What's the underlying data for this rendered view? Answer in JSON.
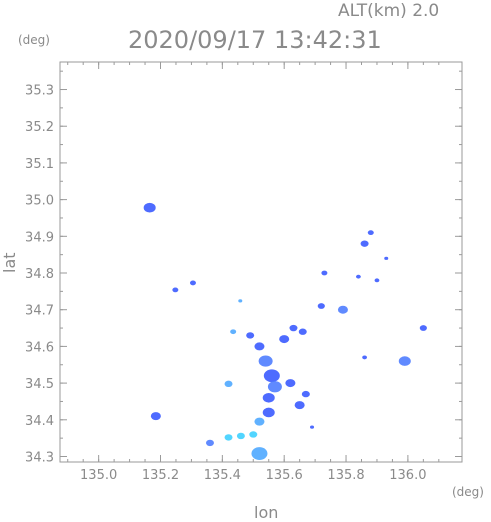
{
  "header": {
    "altitude_label": "ALT(km)  2.0",
    "timestamp": "2020/09/17  13:42:31",
    "y_unit": "(deg)",
    "x_unit": "(deg)"
  },
  "colors": {
    "axis": "#9a9a9a",
    "text": "#8a8a8a",
    "echo_blue": "#3b5bff",
    "echo_mid": "#4f7dff",
    "echo_light": "#4fa8ff",
    "echo_cyan": "#3fd0ff"
  },
  "chart_data": {
    "type": "scatter",
    "title": "2020/09/17  13:42:31",
    "xlabel": "lon",
    "ylabel": "lat",
    "xlim": [
      134.875,
      136.175
    ],
    "ylim": [
      34.285,
      35.375
    ],
    "xticks": [
      135.0,
      135.2,
      135.4,
      135.6,
      135.8,
      136.0
    ],
    "xtick_labels": [
      "135.0",
      "135.2",
      "135.4",
      "135.6",
      "135.8",
      "136.0"
    ],
    "yticks": [
      34.3,
      34.4,
      34.5,
      34.6,
      34.7,
      34.8,
      34.9,
      35.0,
      35.1,
      35.2,
      35.3
    ],
    "ytick_labels": [
      "34.3",
      "34.4",
      "34.5",
      "34.6",
      "34.7",
      "34.8",
      "34.9",
      "35.0",
      "35.1",
      "35.2",
      "35.3"
    ],
    "grid": false,
    "echo_cells": [
      {
        "x": 135.165,
        "y": 34.978,
        "size": 3,
        "color": "blue"
      },
      {
        "x": 135.185,
        "y": 34.41,
        "size": 2.5,
        "color": "blue"
      },
      {
        "x": 135.248,
        "y": 34.754,
        "size": 1.5,
        "color": "blue"
      },
      {
        "x": 135.305,
        "y": 34.773,
        "size": 1.5,
        "color": "blue"
      },
      {
        "x": 135.36,
        "y": 34.337,
        "size": 2,
        "color": "mid"
      },
      {
        "x": 135.42,
        "y": 34.352,
        "size": 2,
        "color": "cyan"
      },
      {
        "x": 135.46,
        "y": 34.356,
        "size": 2,
        "color": "cyan"
      },
      {
        "x": 135.5,
        "y": 34.36,
        "size": 2,
        "color": "cyan"
      },
      {
        "x": 135.52,
        "y": 34.308,
        "size": 4,
        "color": "light"
      },
      {
        "x": 135.42,
        "y": 34.498,
        "size": 2,
        "color": "light"
      },
      {
        "x": 135.435,
        "y": 34.64,
        "size": 1.5,
        "color": "light"
      },
      {
        "x": 135.458,
        "y": 34.724,
        "size": 1,
        "color": "light"
      },
      {
        "x": 135.49,
        "y": 34.63,
        "size": 2,
        "color": "blue"
      },
      {
        "x": 135.52,
        "y": 34.6,
        "size": 2.5,
        "color": "blue"
      },
      {
        "x": 135.54,
        "y": 34.56,
        "size": 3.5,
        "color": "mid"
      },
      {
        "x": 135.56,
        "y": 34.52,
        "size": 4,
        "color": "blue"
      },
      {
        "x": 135.57,
        "y": 34.49,
        "size": 3.5,
        "color": "mid"
      },
      {
        "x": 135.55,
        "y": 34.46,
        "size": 3,
        "color": "blue"
      },
      {
        "x": 135.6,
        "y": 34.62,
        "size": 2.5,
        "color": "blue"
      },
      {
        "x": 135.63,
        "y": 34.65,
        "size": 2,
        "color": "blue"
      },
      {
        "x": 135.66,
        "y": 34.64,
        "size": 2,
        "color": "blue"
      },
      {
        "x": 135.62,
        "y": 34.5,
        "size": 2.5,
        "color": "blue"
      },
      {
        "x": 135.55,
        "y": 34.42,
        "size": 3,
        "color": "blue"
      },
      {
        "x": 135.65,
        "y": 34.44,
        "size": 2.5,
        "color": "blue"
      },
      {
        "x": 135.67,
        "y": 34.47,
        "size": 2,
        "color": "blue"
      },
      {
        "x": 135.52,
        "y": 34.395,
        "size": 2.5,
        "color": "light"
      },
      {
        "x": 135.69,
        "y": 34.38,
        "size": 1,
        "color": "blue"
      },
      {
        "x": 135.73,
        "y": 34.8,
        "size": 1.5,
        "color": "blue"
      },
      {
        "x": 135.79,
        "y": 34.7,
        "size": 2.5,
        "color": "mid"
      },
      {
        "x": 135.86,
        "y": 34.88,
        "size": 2,
        "color": "blue"
      },
      {
        "x": 135.88,
        "y": 34.91,
        "size": 1.5,
        "color": "blue"
      },
      {
        "x": 135.84,
        "y": 34.79,
        "size": 1.2,
        "color": "blue"
      },
      {
        "x": 135.9,
        "y": 34.78,
        "size": 1.2,
        "color": "blue"
      },
      {
        "x": 135.93,
        "y": 34.84,
        "size": 1,
        "color": "blue"
      },
      {
        "x": 135.86,
        "y": 34.57,
        "size": 1.2,
        "color": "blue"
      },
      {
        "x": 135.99,
        "y": 34.56,
        "size": 3,
        "color": "mid"
      },
      {
        "x": 136.05,
        "y": 34.65,
        "size": 1.8,
        "color": "blue"
      },
      {
        "x": 135.72,
        "y": 34.71,
        "size": 1.8,
        "color": "blue"
      }
    ]
  }
}
